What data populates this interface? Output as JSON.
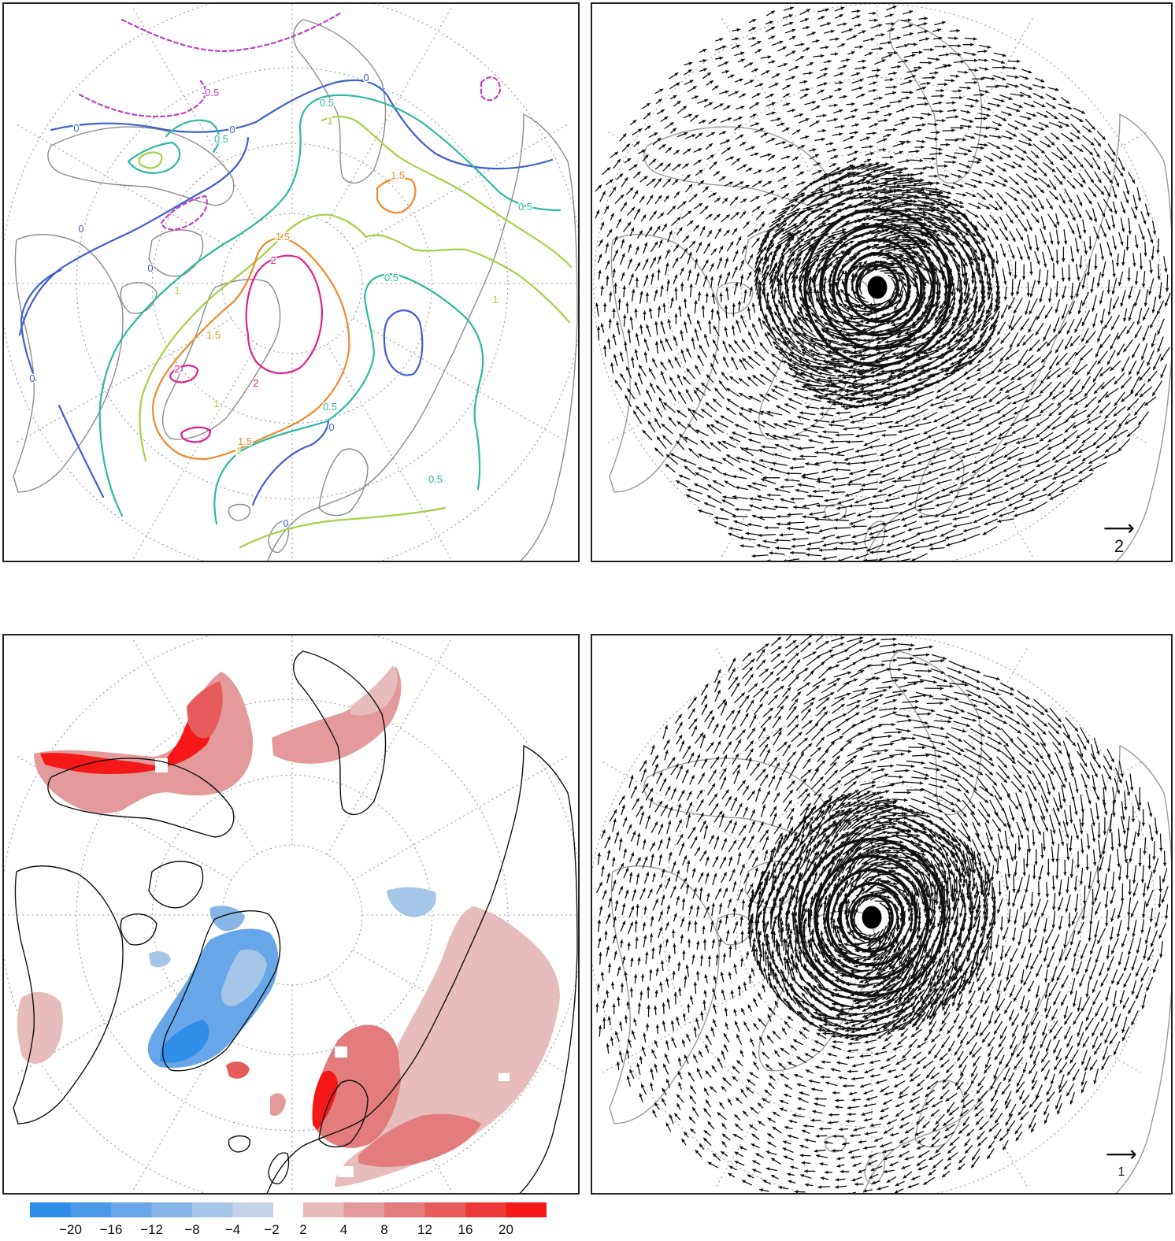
{
  "panels": {
    "contour": {
      "contour_labels": [
        "-0.5",
        "0",
        "0",
        "0",
        "0",
        "0",
        "0",
        "0",
        "0",
        "0.5",
        "0.5",
        "0.5",
        "0.5",
        "0.5",
        "0.5",
        "1",
        "1",
        "1",
        "1",
        "1",
        "1.5",
        "1.5",
        "1.5",
        "1.5",
        "2",
        "2",
        "2"
      ],
      "colors": {
        "neg": "#c040c8",
        "zero": "#3f5fd0",
        "half": "#2cb9a0",
        "one": "#a6d046",
        "onehalf": "#ee8a2c",
        "two": "#e0208a"
      }
    },
    "wind_upper": {
      "reference_value": "2"
    },
    "precip": {
      "colorbar_ticks": [
        "−20",
        "−16",
        "−12",
        "−8",
        "−4",
        "−2",
        "2",
        "4",
        "8",
        "12",
        "16",
        "20"
      ],
      "colors": {
        "blue": [
          "#2f8ee8",
          "#4a98e8",
          "#67a6e8",
          "#87b6e6",
          "#a5c6e6",
          "#c3d4e8"
        ],
        "red": [
          "#e7bcbc",
          "#e49a9a",
          "#e37c7c",
          "#e65c5c",
          "#ec3838",
          "#f41818"
        ]
      }
    },
    "wind_lower": {
      "reference_value": "1"
    }
  }
}
